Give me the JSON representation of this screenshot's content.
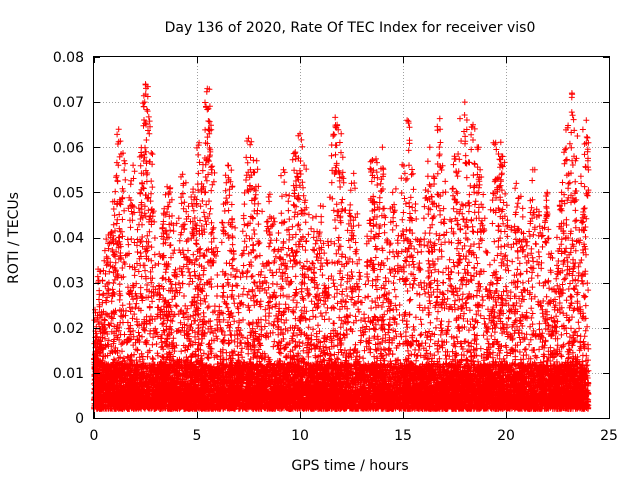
{
  "chart_data": {
    "type": "scatter",
    "title": "Day 136 of 2020, Rate Of TEC Index for receiver vis0",
    "xlabel": "GPS time / hours",
    "ylabel": "ROTI / TECUs",
    "xlim": [
      0,
      25
    ],
    "ylim": [
      0,
      0.08
    ],
    "x_ticks": [
      0,
      5,
      10,
      15,
      20,
      25
    ],
    "x_tick_labels": [
      "0",
      "5",
      "10",
      "15",
      "20",
      "25"
    ],
    "y_ticks": [
      0,
      0.01,
      0.02,
      0.03,
      0.04,
      0.05,
      0.06,
      0.07,
      0.08
    ],
    "y_tick_labels": [
      "0",
      "0.01",
      "0.02",
      "0.03",
      "0.04",
      "0.05",
      "0.06",
      "0.07",
      "0.08"
    ],
    "grid": true,
    "marker": "+",
    "color": "#ff0000",
    "series": [
      {
        "name": "ROTI",
        "x_range": [
          0,
          24
        ],
        "baseline_range": [
          0.002,
          0.012
        ],
        "note": "dense cloud of points; baseline mostly 0.003-0.012 with frequent spikes",
        "peaks": [
          {
            "x": 0.05,
            "y": 0.024
          },
          {
            "x": 0.2,
            "y": 0.033
          },
          {
            "x": 1.2,
            "y": 0.064
          },
          {
            "x": 1.0,
            "y": 0.048
          },
          {
            "x": 1.9,
            "y": 0.056
          },
          {
            "x": 2.5,
            "y": 0.074
          },
          {
            "x": 2.6,
            "y": 0.068
          },
          {
            "x": 2.5,
            "y": 0.059
          },
          {
            "x": 3.4,
            "y": 0.045
          },
          {
            "x": 3.7,
            "y": 0.051
          },
          {
            "x": 4.3,
            "y": 0.054
          },
          {
            "x": 4.9,
            "y": 0.049
          },
          {
            "x": 5.1,
            "y": 0.061
          },
          {
            "x": 5.5,
            "y": 0.073
          },
          {
            "x": 5.6,
            "y": 0.064
          },
          {
            "x": 6.5,
            "y": 0.056
          },
          {
            "x": 7.5,
            "y": 0.062
          },
          {
            "x": 7.9,
            "y": 0.057
          },
          {
            "x": 8.5,
            "y": 0.048
          },
          {
            "x": 9.2,
            "y": 0.055
          },
          {
            "x": 9.8,
            "y": 0.058
          },
          {
            "x": 10.0,
            "y": 0.063
          },
          {
            "x": 10.2,
            "y": 0.056
          },
          {
            "x": 11.0,
            "y": 0.047
          },
          {
            "x": 11.8,
            "y": 0.065
          },
          {
            "x": 12.0,
            "y": 0.063
          },
          {
            "x": 12.5,
            "y": 0.052
          },
          {
            "x": 13.5,
            "y": 0.057
          },
          {
            "x": 14.0,
            "y": 0.06
          },
          {
            "x": 14.5,
            "y": 0.05
          },
          {
            "x": 15.2,
            "y": 0.066
          },
          {
            "x": 16.3,
            "y": 0.06
          },
          {
            "x": 16.8,
            "y": 0.064
          },
          {
            "x": 17.5,
            "y": 0.058
          },
          {
            "x": 18.0,
            "y": 0.07
          },
          {
            "x": 18.4,
            "y": 0.065
          },
          {
            "x": 18.6,
            "y": 0.06
          },
          {
            "x": 19.5,
            "y": 0.061
          },
          {
            "x": 19.8,
            "y": 0.058
          },
          {
            "x": 20.5,
            "y": 0.052
          },
          {
            "x": 21.3,
            "y": 0.055
          },
          {
            "x": 22.0,
            "y": 0.05
          },
          {
            "x": 22.7,
            "y": 0.05
          },
          {
            "x": 23.2,
            "y": 0.072
          },
          {
            "x": 23.3,
            "y": 0.058
          },
          {
            "x": 23.9,
            "y": 0.066
          },
          {
            "x": 24.0,
            "y": 0.061
          }
        ]
      }
    ]
  }
}
